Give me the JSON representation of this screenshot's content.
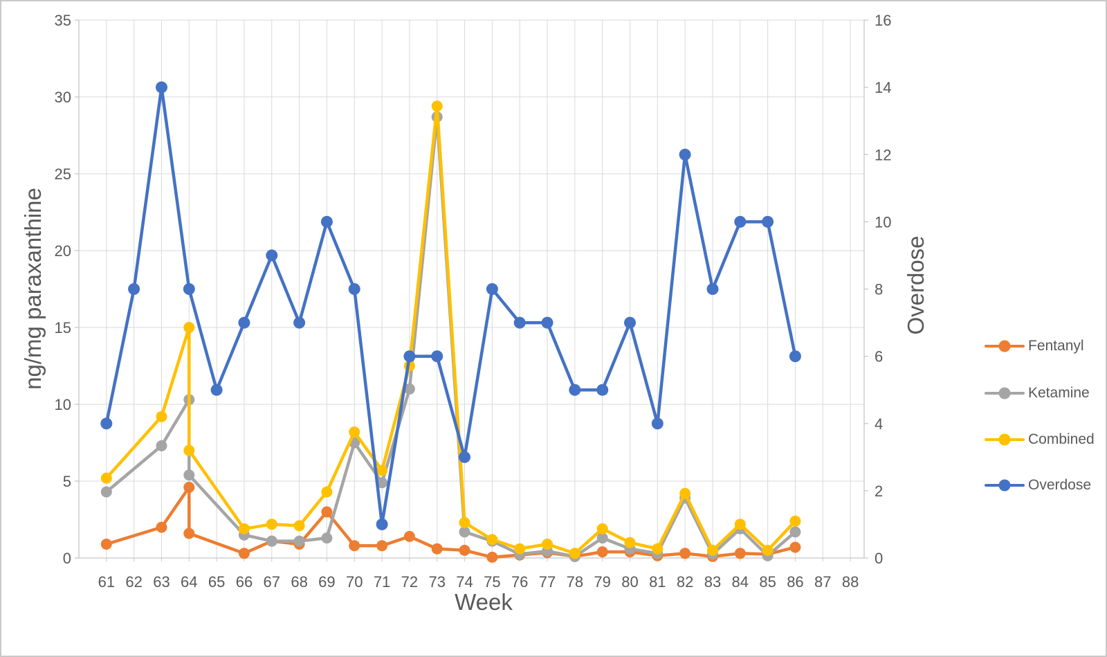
{
  "chart_data": {
    "type": "line",
    "title": "",
    "xlabel": "Week",
    "ylabel_left": "ng/mg paraxanthine",
    "ylabel_right": "Overdose",
    "x_axis": {
      "min": 60,
      "max": 88.5,
      "tick_labels": [
        61,
        62,
        63,
        64,
        65,
        66,
        67,
        68,
        69,
        70,
        71,
        72,
        73,
        74,
        75,
        76,
        77,
        78,
        79,
        80,
        81,
        82,
        83,
        84,
        85,
        86,
        87,
        88
      ]
    },
    "y_left_axis": {
      "min": 0,
      "max": 35,
      "ticks": [
        0,
        5,
        10,
        15,
        20,
        25,
        30,
        35
      ]
    },
    "y_right_axis": {
      "min": 0,
      "max": 16,
      "ticks": [
        0,
        2,
        4,
        6,
        8,
        10,
        12,
        14,
        16
      ]
    },
    "grid": true,
    "legend_position": "right",
    "series": [
      {
        "name": "Fentanyl",
        "color": "#ED7D31",
        "axis": "left",
        "x": [
          61,
          63,
          64,
          64,
          66,
          67,
          68,
          69,
          70,
          71,
          72,
          73,
          74,
          75,
          76,
          77,
          78,
          79,
          80,
          81,
          82,
          83,
          84,
          85,
          86
        ],
        "y": [
          0.9,
          2.0,
          4.6,
          1.6,
          0.3,
          1.1,
          0.9,
          3.0,
          0.8,
          0.8,
          1.4,
          0.6,
          0.5,
          0.05,
          0.2,
          0.35,
          0.1,
          0.4,
          0.4,
          0.15,
          0.3,
          0.1,
          0.3,
          0.25,
          0.7
        ]
      },
      {
        "name": "Ketamine",
        "color": "#A5A5A5",
        "axis": "left",
        "x": [
          61,
          63,
          64,
          64,
          66,
          67,
          68,
          69,
          70,
          71,
          72,
          73,
          74,
          75,
          76,
          77,
          78,
          79,
          80,
          81,
          82,
          83,
          84,
          85,
          86
        ],
        "y": [
          4.3,
          7.3,
          10.3,
          5.4,
          1.5,
          1.1,
          1.1,
          1.3,
          7.5,
          4.9,
          11.0,
          28.7,
          1.7,
          1.1,
          0.25,
          0.45,
          0.1,
          1.3,
          0.6,
          0.3,
          3.9,
          0.25,
          1.9,
          0.15,
          1.7
        ]
      },
      {
        "name": "Combined",
        "color": "#FFC000",
        "axis": "left",
        "x": [
          61,
          63,
          64,
          64,
          66,
          67,
          68,
          69,
          70,
          71,
          72,
          73,
          74,
          75,
          76,
          77,
          78,
          79,
          80,
          81,
          82,
          83,
          84,
          85,
          86
        ],
        "y": [
          5.2,
          9.2,
          15.0,
          7.0,
          1.9,
          2.2,
          2.1,
          4.3,
          8.2,
          5.7,
          12.5,
          29.4,
          2.3,
          1.2,
          0.6,
          0.9,
          0.3,
          1.9,
          1.0,
          0.6,
          4.2,
          0.5,
          2.2,
          0.5,
          2.4
        ]
      },
      {
        "name": "Overdose",
        "color": "#4472C4",
        "axis": "right",
        "x": [
          61,
          62,
          63,
          64,
          65,
          66,
          67,
          68,
          69,
          70,
          71,
          72,
          73,
          74,
          75,
          76,
          77,
          78,
          79,
          80,
          81,
          82,
          83,
          84,
          85,
          86
        ],
        "y": [
          4,
          8,
          14,
          8,
          5,
          7,
          9,
          7,
          10,
          8,
          1,
          6,
          6,
          3,
          8,
          7,
          7,
          5,
          5,
          7,
          4,
          12,
          8,
          10,
          10,
          6
        ]
      }
    ]
  },
  "style": {
    "gridline_color": "#D9D9D9",
    "axis_line_color": "#C6C6C6",
    "tick_label_color": "#595959",
    "axis_title_color": "#595959",
    "background_color": "#FFFFFF",
    "border_color": "#C9C9C9"
  }
}
